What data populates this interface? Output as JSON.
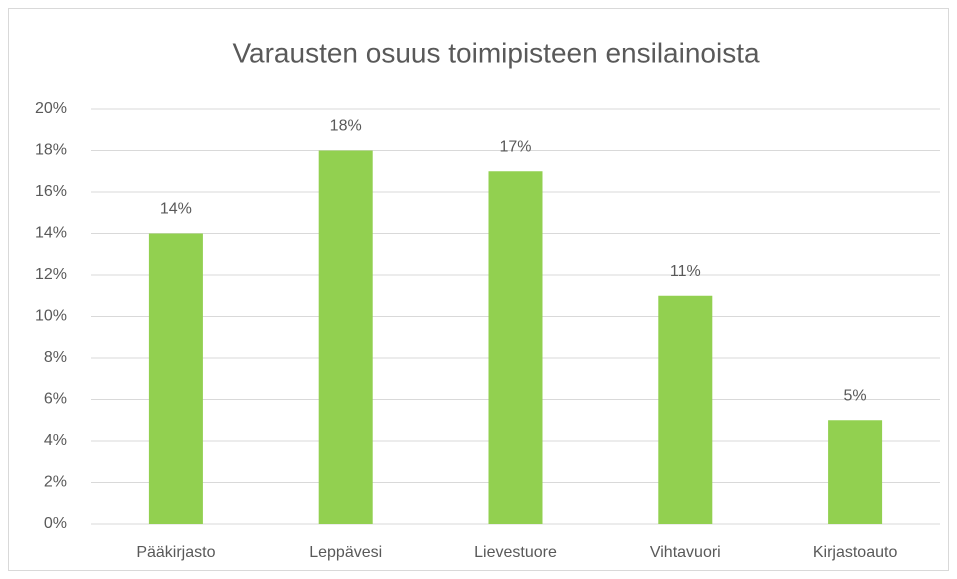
{
  "chart_data": {
    "type": "bar",
    "title": "Varausten osuus toimipisteen ensilainoista",
    "categories": [
      "Pääkirjasto",
      "Leppävesi",
      "Lievestuore",
      "Vihtavuori",
      "Kirjastoauto"
    ],
    "values": [
      14,
      18,
      17,
      11,
      5
    ],
    "value_labels": [
      "14%",
      "18%",
      "17%",
      "11%",
      "5%"
    ],
    "color": "#92d050",
    "ylim": [
      0,
      20
    ],
    "yticks": [
      {
        "value": 0,
        "label": "0%"
      },
      {
        "value": 2,
        "label": "2%"
      },
      {
        "value": 4,
        "label": "4%"
      },
      {
        "value": 6,
        "label": "6%"
      },
      {
        "value": 8,
        "label": "8%"
      },
      {
        "value": 10,
        "label": "10%"
      },
      {
        "value": 12,
        "label": "12%"
      },
      {
        "value": 14,
        "label": "14%"
      },
      {
        "value": 16,
        "label": "16%"
      },
      {
        "value": 18,
        "label": "18%"
      },
      {
        "value": 20,
        "label": "20%"
      }
    ],
    "grid": true
  }
}
